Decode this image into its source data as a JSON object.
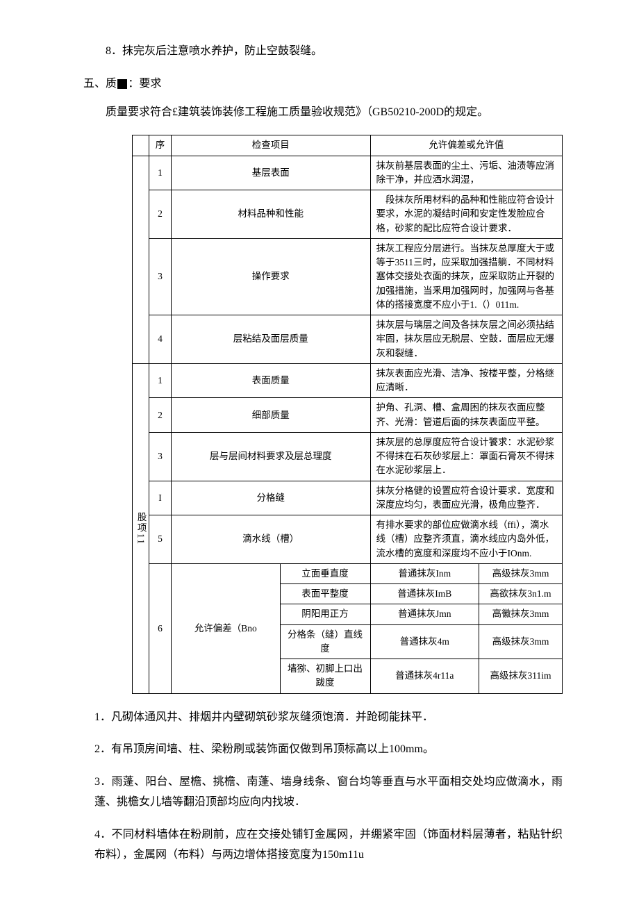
{
  "p_numbered_8": "8．抹完灰后注意喷水养护，防止空鼓裂缝。",
  "section5_head": "五、质",
  "section5_head2": "：要求",
  "quality_req": "质量要求符合£建筑装饰装修工程施工质量验收规范》（GB50210-200D的规定。",
  "table": {
    "h_seq": "序",
    "h_check": "检查项目",
    "h_allow": "允许偏差或允许值",
    "group1_rows": [
      {
        "seq": "1",
        "check": "基层表面",
        "allow": "抹灰前基层表面的尘土、污垢、油渍等应消除干净，并应洒水润湿，"
      },
      {
        "seq": "2",
        "check": "材料品种和性能",
        "allow": "　段抹灰所用材料的品种和性能应符合设计要求，水泥的凝结时间和安定性发脸应合格，砂浆的配比应符合设计要求．"
      },
      {
        "seq": "3",
        "check": "操作要求",
        "allow": "抹灰工程应分层进行。当抹灰总厚度大于或等于3511三时，应采取加强措躺．不同材料塞体交接处衣面的抹灰，应采取防止开裂的加强措施，当釆用加强网时，加强网与各基体的搭接宽度不应小于1.（）011m."
      },
      {
        "seq": "4",
        "check": "层粘结及面层质量",
        "allow": "抹灰层与璃层之间及各抹灰层之间必须拈结牢固，抹灰层应无脱层、空鼓．面层应无爆灰和裂缝．"
      }
    ],
    "group2_label": "股项11",
    "group2_rows": [
      {
        "seq": "1",
        "check": "表面质量",
        "allow": "抹灰表面应光滑、洁净、按楼平整，分格继应清晰．"
      },
      {
        "seq": "2",
        "check": "细部质量",
        "allow": "护角、孔洞、槽、盒周困的抹灰衣面应整齐、光滑：管道后面的抹灰表面应平整。"
      },
      {
        "seq": "3",
        "check": "层与层间材料要求及层总理度",
        "allow": "抹灰层的总厚度应符合设计饕求：水泥砂浆不得抹在石灰砂浆层上：罩面石膏灰不得抹在水泥砂浆层上．"
      },
      {
        "seq": "I",
        "check": "分格缝",
        "allow": "抹灰分格健的设置应符合设计要求．宽度和深度应均匀，表面应光滑，极角应整齐．"
      },
      {
        "seq": "5",
        "check": "滴水线（槽）",
        "allow": "有排水要求的部位应做滴水线（ffi），滴水线（槽）应整齐须直，滴水线应内岛外低，流水槽的宽度和深度均不应小于IOnm."
      }
    ],
    "row6": {
      "seq": "6",
      "label": "允许偏差（Bno",
      "items": [
        {
          "name": "立面垂直度",
          "c1": "普通抹灰Inm",
          "c2": "高级抹灰3mm"
        },
        {
          "name": "表面平整度",
          "c1": "普通抹灰ImB",
          "c2": "高欲抹灰3n1.m"
        },
        {
          "name": "阴阳用正方",
          "c1": "普通抹灰Jmn",
          "c2": "高徽抹灰3mm"
        },
        {
          "name": "分格条（缝）直线度",
          "c1": "普通抹灰4m",
          "c2": "高级抹灰3mm"
        },
        {
          "name": "墙猕、初脚上口出跋度",
          "c1": "普通抹灰4r11a",
          "c2": "高级抹灰311im"
        }
      ]
    }
  },
  "notes": [
    "1．凡砌体通风井、排烟井内壁砌筑砂浆灰缝须饱滴．并跄砌能抹平．",
    "2．有吊顶房间墙、柱、梁粉刷或装饰面仅做到吊顶标高以上100mm。",
    "3．雨蓬、阳台、屋檐、挑檐、南蓬、墙身线条、窗台均等垂直与水平面相交处均应做滴水，雨蓬、挑檐女儿墙等翻沿顶部均应向内找坡．",
    "4．不同材料墙体在粉刷前，应在交接处铺钉金属网，并绷紧牢固（饰面材料层薄者，粘贴针织布料），金属网（布料）与两边增体搭接宽度为150m11u"
  ]
}
